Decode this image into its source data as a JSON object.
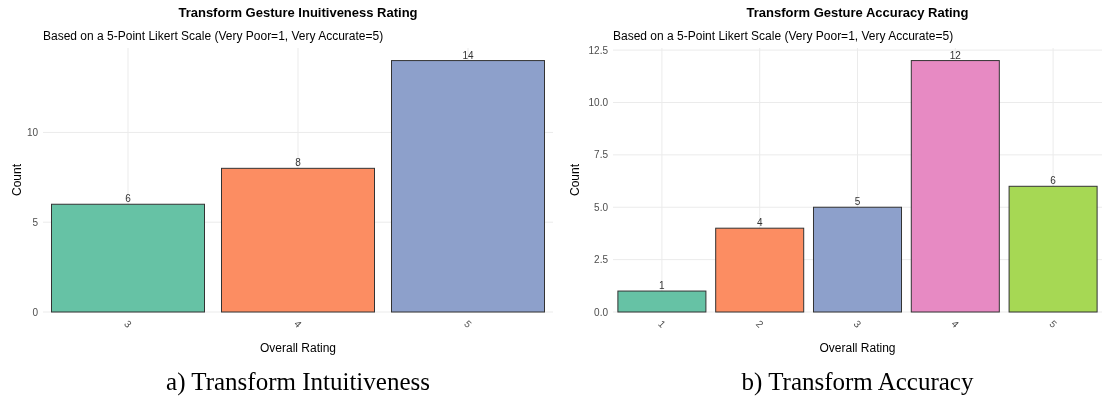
{
  "chart_data": [
    {
      "type": "bar",
      "title": "Transform Gesture Inuitiveness Rating",
      "subtitle": "Based on a 5-Point Likert Scale (Very Poor=1, Very Accurate=5)",
      "xlabel": "Overall Rating",
      "ylabel": "Count",
      "categories": [
        "3",
        "4",
        "5"
      ],
      "values": [
        6,
        8,
        14
      ],
      "colors": [
        "#66c2a5",
        "#fc8d62",
        "#8da0cb"
      ],
      "ylim": [
        0,
        14.7
      ],
      "yticks": [
        0,
        5,
        10
      ],
      "grid": true,
      "data_labels": true,
      "annotations": [
        "a) Transform Intuitiveness"
      ]
    },
    {
      "type": "bar",
      "title": "Transform Gesture Accuracy Rating",
      "subtitle": "Based on a 5-Point Likert Scale (Very Poor=1, Very Accurate=5)",
      "xlabel": "Overall Rating",
      "ylabel": "Count",
      "categories": [
        "1",
        "2",
        "3",
        "4",
        "5"
      ],
      "values": [
        1,
        4,
        5,
        12,
        6
      ],
      "colors": [
        "#66c2a5",
        "#fc8d62",
        "#8da0cb",
        "#e78ac3",
        "#a6d854"
      ],
      "ylim": [
        0,
        12.6
      ],
      "yticks": [
        {
          "value": 0,
          "label": "0.0"
        },
        {
          "value": 2.5,
          "label": "2.5"
        },
        {
          "value": 5,
          "label": "5.0"
        },
        {
          "value": 7.5,
          "label": "7.5"
        },
        {
          "value": 10,
          "label": "10.0"
        },
        {
          "value": 12.5,
          "label": "12.5"
        }
      ],
      "grid": true,
      "data_labels": true,
      "annotations": [
        "b) Transform Accuracy"
      ]
    }
  ]
}
